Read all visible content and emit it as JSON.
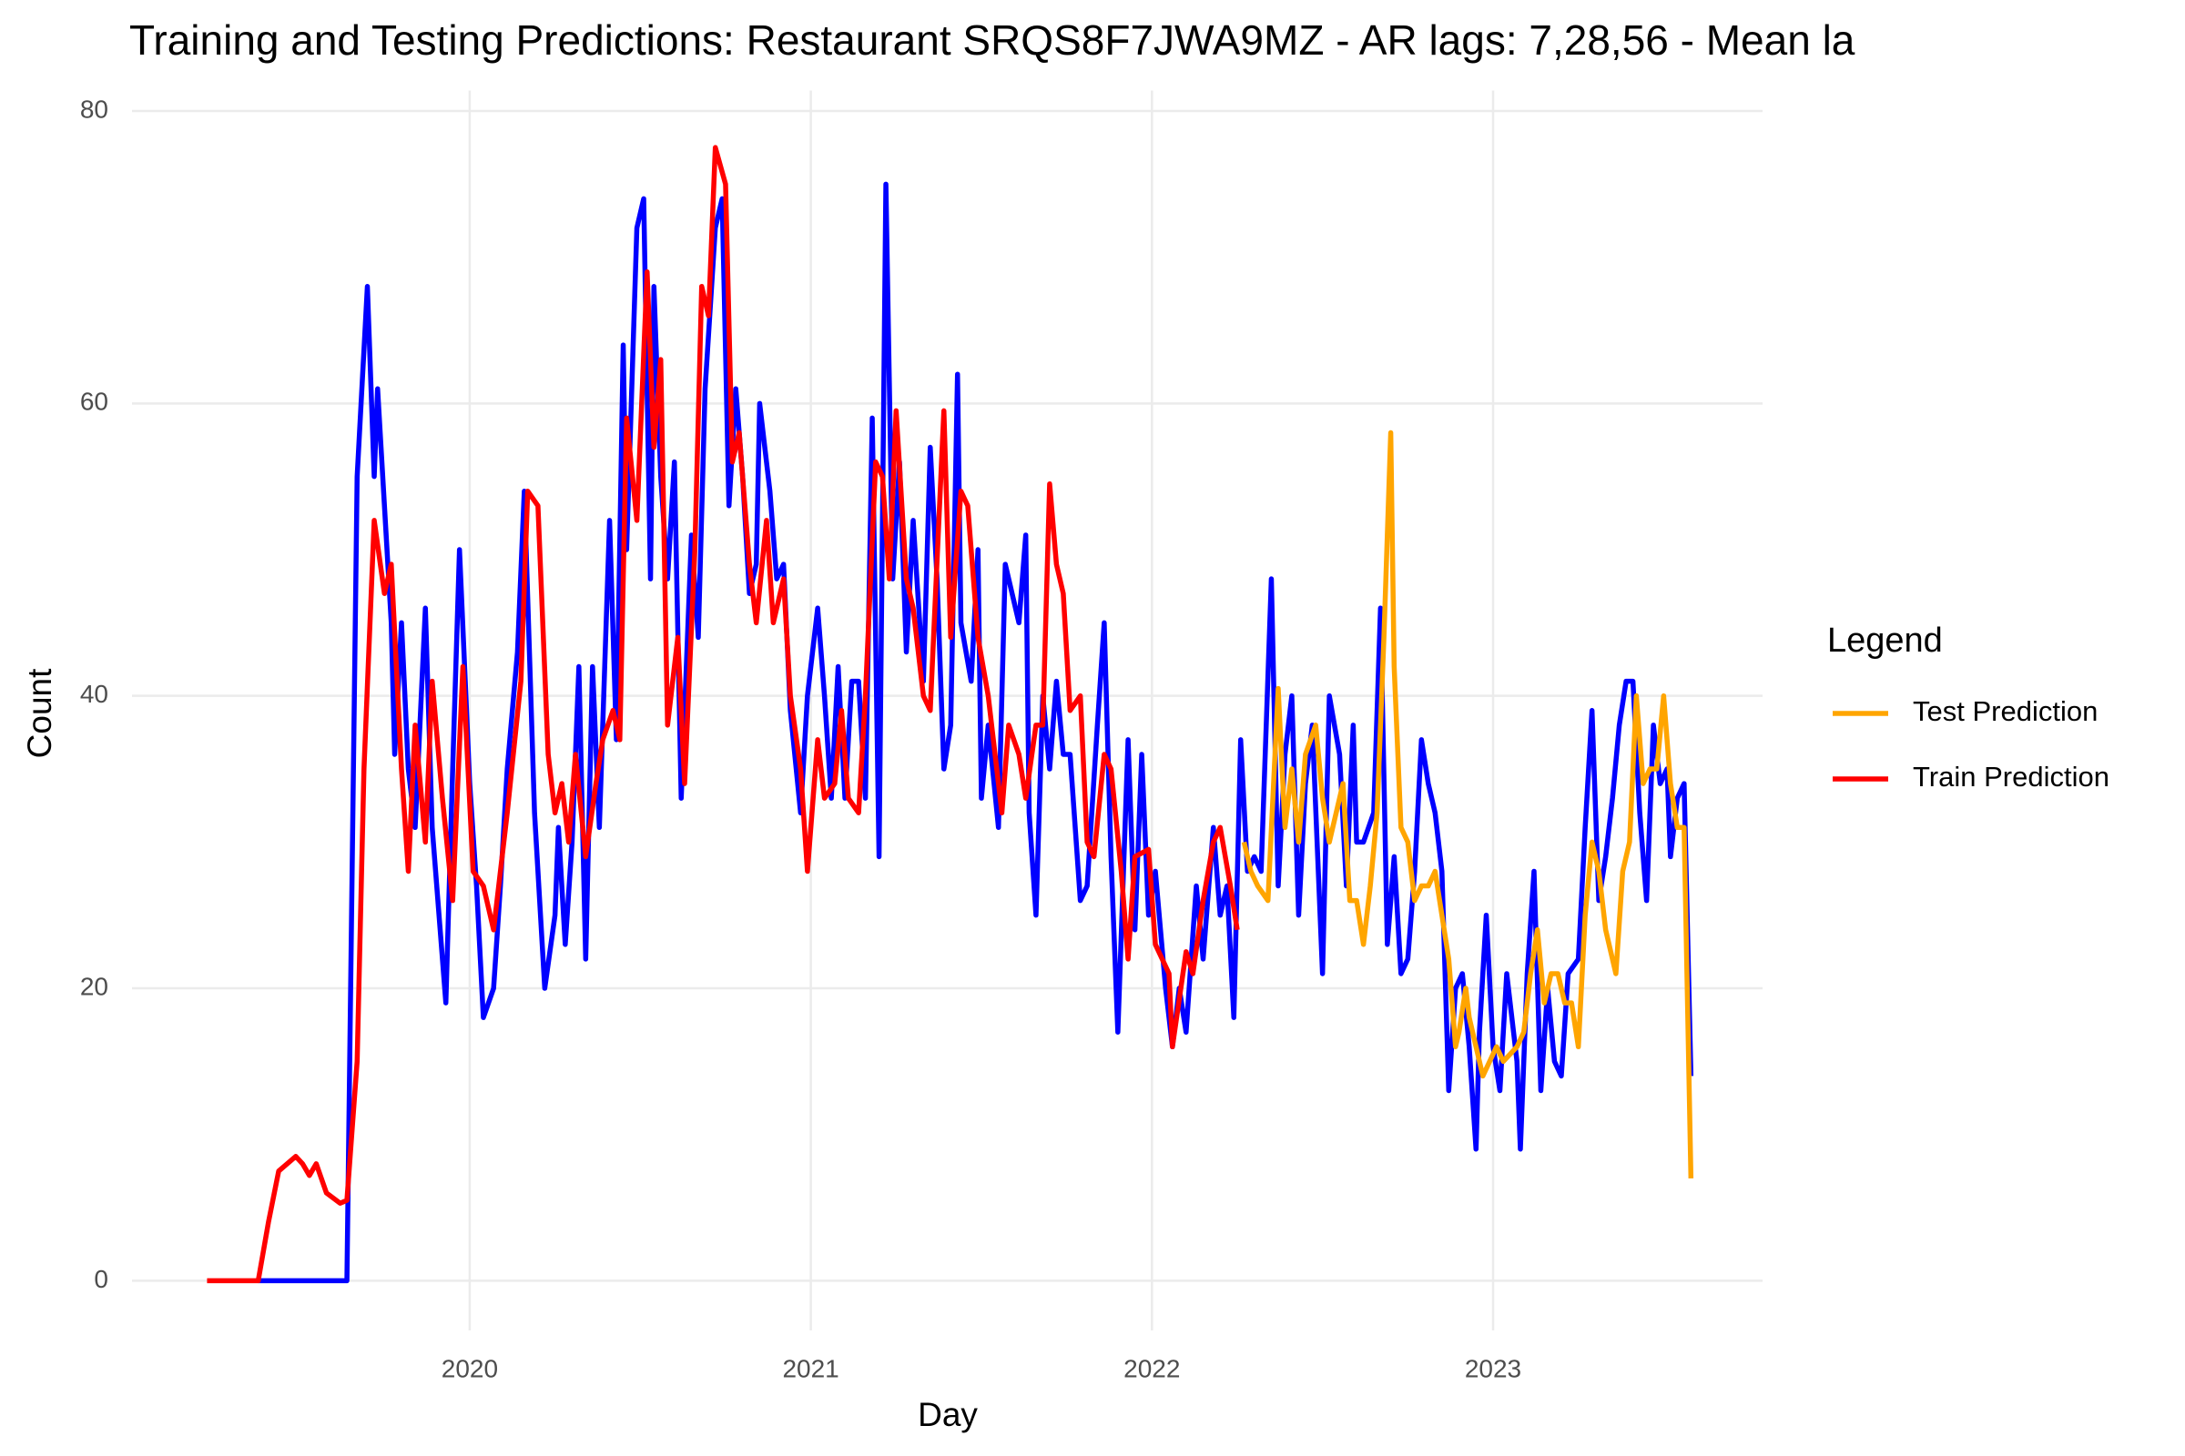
{
  "chart_data": {
    "type": "line",
    "title": "Training and Testing Predictions: Restaurant SRQS8F7JWA9MZ - AR lags: 7,28,56 - Mean la",
    "x_label": "Day",
    "y_label": "Count",
    "legend_title": "Legend",
    "legend_position": "right",
    "grid": true,
    "xlim": [
      2019.01,
      2023.79
    ],
    "xticks": [
      2020,
      2021,
      2022,
      2023
    ],
    "ylim": [
      -3.4,
      81.4
    ],
    "yticks": [
      0,
      20,
      40,
      60,
      80
    ],
    "series": [
      {
        "color": "#0000ff",
        "x": [
          2019.38,
          2019.64,
          2019.67,
          2019.7,
          2019.72,
          2019.73,
          2019.77,
          2019.78,
          2019.8,
          2019.82,
          2019.84,
          2019.87,
          2019.89,
          2019.91,
          2019.93,
          2019.95,
          2019.97,
          2020.0,
          2020.02,
          2020.04,
          2020.07,
          2020.09,
          2020.11,
          2020.14,
          2020.16,
          2020.19,
          2020.22,
          2020.25,
          2020.26,
          2020.28,
          2020.3,
          2020.32,
          2020.34,
          2020.36,
          2020.38,
          2020.41,
          2020.43,
          2020.45,
          2020.46,
          2020.49,
          2020.51,
          2020.53,
          2020.54,
          2020.56,
          2020.58,
          2020.6,
          2020.62,
          2020.65,
          2020.67,
          2020.69,
          2020.72,
          2020.74,
          2020.76,
          2020.78,
          2020.8,
          2020.82,
          2020.84,
          2020.85,
          2020.88,
          2020.9,
          2020.92,
          2020.94,
          2020.97,
          2020.99,
          2021.02,
          2021.04,
          2021.06,
          2021.08,
          2021.1,
          2021.12,
          2021.14,
          2021.16,
          2021.18,
          2021.2,
          2021.22,
          2021.24,
          2021.26,
          2021.28,
          2021.3,
          2021.33,
          2021.35,
          2021.37,
          2021.39,
          2021.41,
          2021.43,
          2021.44,
          2021.47,
          2021.49,
          2021.5,
          2021.52,
          2021.55,
          2021.57,
          2021.59,
          2021.61,
          2021.63,
          2021.64,
          2021.66,
          2021.68,
          2021.7,
          2021.72,
          2021.74,
          2021.76,
          2021.79,
          2021.81,
          2021.84,
          2021.86,
          2021.88,
          2021.9,
          2021.93,
          2021.95,
          2021.97,
          2021.99,
          2022.01,
          2022.04,
          2022.06,
          2022.08,
          2022.1,
          2022.13,
          2022.15,
          2022.18,
          2022.2,
          2022.22,
          2022.24,
          2022.26,
          2022.28,
          2022.3,
          2022.32,
          2022.35,
          2022.37,
          2022.39,
          2022.41,
          2022.43,
          2022.45,
          2022.47,
          2022.5,
          2022.52,
          2022.55,
          2022.57,
          2022.59,
          2022.6,
          2022.62,
          2022.65,
          2022.67,
          2022.69,
          2022.71,
          2022.73,
          2022.75,
          2022.77,
          2022.79,
          2022.81,
          2022.83,
          2022.85,
          2022.87,
          2022.89,
          2022.91,
          2022.93,
          2022.95,
          2022.96,
          2022.98,
          2023.0,
          2023.02,
          2023.04,
          2023.07,
          2023.08,
          2023.1,
          2023.12,
          2023.14,
          2023.16,
          2023.18,
          2023.2,
          2023.22,
          2023.25,
          2023.27,
          2023.29,
          2023.31,
          2023.33,
          2023.35,
          2023.37,
          2023.39,
          2023.41,
          2023.43,
          2023.45,
          2023.47,
          2023.49,
          2023.51,
          2023.52,
          2023.54,
          2023.56,
          2023.58
        ],
        "values": [
          0,
          0,
          55,
          68,
          55,
          61,
          45,
          36,
          45,
          35,
          31,
          46,
          31,
          25,
          19,
          35,
          50,
          34,
          27,
          18,
          20,
          27,
          35,
          43,
          54,
          32,
          20,
          25,
          31,
          23,
          30,
          42,
          22,
          42,
          31,
          52,
          37,
          64,
          50,
          72,
          74,
          48,
          68,
          55,
          48,
          56,
          33,
          51,
          44,
          61,
          72,
          74,
          53,
          61,
          55,
          47,
          49,
          60,
          54,
          48,
          49,
          39,
          32,
          40,
          46,
          40,
          33,
          42,
          33,
          41,
          41,
          33,
          59,
          29,
          75,
          48,
          56,
          43,
          52,
          41,
          57,
          48,
          35,
          38,
          62,
          45,
          41,
          50,
          33,
          38,
          31,
          49,
          47,
          45,
          51,
          32,
          25,
          40,
          35,
          41,
          36,
          36,
          26,
          27,
          38,
          45,
          29,
          17,
          37,
          24,
          36,
          25,
          28,
          20,
          16,
          20,
          17,
          27,
          22,
          31,
          25,
          27,
          18,
          37,
          28,
          29,
          28,
          48,
          27,
          36,
          40,
          25,
          34,
          38,
          21,
          40,
          36,
          27,
          38,
          30,
          30,
          32,
          46,
          23,
          29,
          21,
          22,
          28,
          37,
          34,
          32,
          28,
          13,
          20,
          21,
          16,
          9,
          17,
          25,
          16,
          13,
          21,
          15,
          9,
          21,
          28,
          13,
          20,
          15,
          14,
          21,
          22,
          31,
          39,
          26,
          29,
          33,
          38,
          41,
          41,
          32,
          26,
          38,
          34,
          35,
          29,
          33,
          34,
          14
        ]
      },
      {
        "name": "Train Prediction",
        "color": "#ff0000",
        "x": [
          2019.23,
          2019.38,
          2019.41,
          2019.44,
          2019.49,
          2019.51,
          2019.53,
          2019.55,
          2019.58,
          2019.62,
          2019.64,
          2019.67,
          2019.69,
          2019.72,
          2019.75,
          2019.77,
          2019.8,
          2019.82,
          2019.84,
          2019.87,
          2019.89,
          2019.92,
          2019.95,
          2019.98,
          2020.01,
          2020.04,
          2020.07,
          2020.11,
          2020.15,
          2020.17,
          2020.2,
          2020.23,
          2020.25,
          2020.27,
          2020.29,
          2020.31,
          2020.34,
          2020.37,
          2020.39,
          2020.42,
          2020.44,
          2020.46,
          2020.49,
          2020.52,
          2020.54,
          2020.56,
          2020.58,
          2020.61,
          2020.63,
          2020.66,
          2020.68,
          2020.7,
          2020.72,
          2020.75,
          2020.77,
          2020.79,
          2020.82,
          2020.84,
          2020.87,
          2020.89,
          2020.92,
          2020.94,
          2020.97,
          2020.99,
          2021.02,
          2021.04,
          2021.07,
          2021.09,
          2021.11,
          2021.14,
          2021.16,
          2021.19,
          2021.21,
          2021.23,
          2021.25,
          2021.28,
          2021.3,
          2021.33,
          2021.35,
          2021.39,
          2021.41,
          2021.44,
          2021.46,
          2021.49,
          2021.52,
          2021.56,
          2021.58,
          2021.61,
          2021.63,
          2021.66,
          2021.68,
          2021.7,
          2021.72,
          2021.74,
          2021.76,
          2021.79,
          2021.81,
          2021.83,
          2021.86,
          2021.88,
          2021.91,
          2021.93,
          2021.95,
          2021.99,
          2022.01,
          2022.05,
          2022.06,
          2022.1,
          2022.12,
          2022.15,
          2022.18,
          2022.2,
          2022.23,
          2022.25
        ],
        "values": [
          0,
          0,
          4,
          7.5,
          8.5,
          8,
          7.2,
          8,
          6,
          5.3,
          5.5,
          15,
          35,
          52,
          47,
          49,
          35,
          28,
          38,
          30,
          41,
          33,
          26,
          42,
          28,
          27,
          24,
          32,
          41,
          54,
          53,
          36,
          32,
          34,
          30,
          36,
          29,
          34,
          37,
          39,
          37,
          59,
          52,
          69,
          57,
          63,
          38,
          44,
          34,
          50,
          68,
          66,
          77.5,
          75,
          56,
          58,
          49,
          45,
          52,
          45,
          48,
          40,
          35,
          28,
          37,
          33,
          34,
          39,
          33,
          32,
          40,
          56,
          55,
          48,
          59.5,
          48,
          46,
          40,
          39,
          59.5,
          44,
          54,
          53,
          44,
          40,
          32,
          38,
          36,
          33,
          38,
          38,
          54.5,
          49,
          47,
          39,
          40,
          30,
          29,
          36,
          35,
          28,
          22,
          29,
          29.5,
          23,
          21,
          16,
          22.5,
          21,
          26,
          30,
          31,
          27,
          24
        ]
      },
      {
        "name": "Test Prediction",
        "color": "#ffa500",
        "x": [
          2022.27,
          2022.29,
          2022.31,
          2022.34,
          2022.37,
          2022.39,
          2022.41,
          2022.43,
          2022.45,
          2022.48,
          2022.5,
          2022.52,
          2022.54,
          2022.56,
          2022.58,
          2022.6,
          2022.62,
          2022.64,
          2022.66,
          2022.68,
          2022.7,
          2022.71,
          2022.73,
          2022.75,
          2022.77,
          2022.79,
          2022.81,
          2022.83,
          2022.85,
          2022.87,
          2022.89,
          2022.9,
          2022.92,
          2022.93,
          2022.95,
          2022.97,
          2022.99,
          2023.01,
          2023.03,
          2023.05,
          2023.07,
          2023.09,
          2023.11,
          2023.13,
          2023.15,
          2023.17,
          2023.19,
          2023.21,
          2023.23,
          2023.25,
          2023.27,
          2023.29,
          2023.31,
          2023.33,
          2023.36,
          2023.38,
          2023.4,
          2023.42,
          2023.44,
          2023.46,
          2023.48,
          2023.5,
          2023.52,
          2023.54,
          2023.56,
          2023.58
        ],
        "values": [
          30,
          28,
          27,
          26,
          40.5,
          31,
          35,
          30,
          36,
          38,
          33,
          30,
          32,
          34,
          26,
          26,
          23,
          27,
          32,
          44,
          58,
          42,
          31,
          30,
          26,
          27,
          27,
          28,
          25,
          22,
          16,
          17,
          20,
          18,
          16,
          14,
          15,
          16,
          15,
          15.5,
          16,
          17,
          21,
          24,
          19,
          21,
          21,
          19,
          19,
          16,
          25,
          30,
          28,
          24,
          21,
          28,
          30,
          40,
          34,
          35,
          35,
          40,
          34,
          31,
          31,
          7
        ]
      }
    ]
  }
}
